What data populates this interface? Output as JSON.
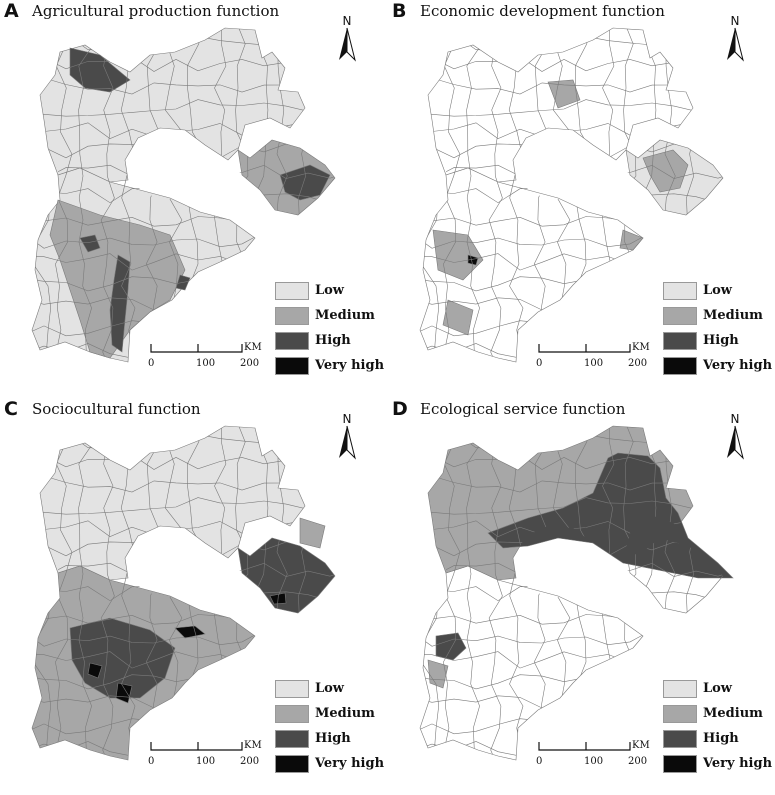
{
  "panels": [
    {
      "letter": "A",
      "title": "Agricultural production function"
    },
    {
      "letter": "B",
      "title": "Economic development function"
    },
    {
      "letter": "C",
      "title": "Sociocultural function"
    },
    {
      "letter": "D",
      "title": "Ecological service function"
    }
  ],
  "north_label": "N",
  "legend": {
    "items": [
      {
        "label": "Low",
        "color": "#e3e3e3"
      },
      {
        "label": "Medium",
        "color": "#a7a7a7"
      },
      {
        "label": "High",
        "color": "#4a4a4a"
      },
      {
        "label": "Very high",
        "color": "#0a0a0a"
      }
    ]
  },
  "scale": {
    "ticks": [
      "0",
      "100",
      "200"
    ],
    "unit": "KM"
  },
  "map_colors": {
    "white": "#ffffff",
    "low": "#e3e3e3",
    "medium": "#a7a7a7",
    "high": "#4a4a4a",
    "veryhigh": "#0a0a0a",
    "border": "#7a7a7a"
  }
}
